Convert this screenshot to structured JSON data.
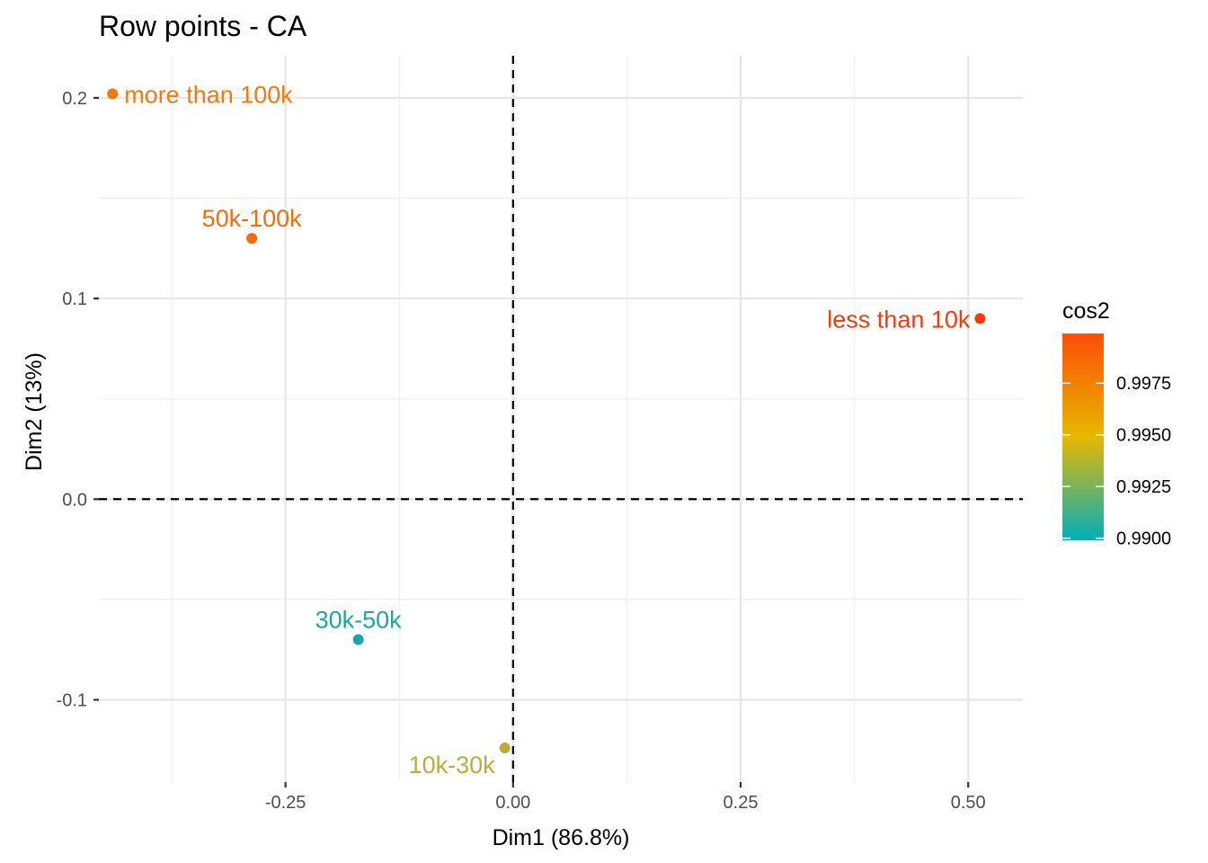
{
  "chart_data": {
    "type": "scatter",
    "title": "Row points - CA",
    "xlabel": "Dim1 (86.8%)",
    "ylabel": "Dim2 (13%)",
    "xlim": [
      -0.455,
      0.56
    ],
    "ylim": [
      -0.141,
      0.221
    ],
    "xticks": [
      -0.25,
      0.0,
      0.25,
      0.5
    ],
    "xtick_labels": [
      "-0.25",
      "0.00",
      "0.25",
      "0.50"
    ],
    "yticks": [
      -0.1,
      0.0,
      0.1,
      0.2
    ],
    "ytick_labels": [
      "-0.1",
      "0.0",
      "0.1",
      "0.2"
    ],
    "grid": true,
    "reference_lines": {
      "x": 0,
      "y": 0,
      "style": "dashed"
    },
    "points": [
      {
        "label": "less than 10k",
        "x": 0.513,
        "y": 0.09,
        "cos2": 0.9998,
        "color": "#f8390d",
        "label_anchor": "end"
      },
      {
        "label": "10k-30k",
        "x": -0.009,
        "y": -0.124,
        "cos2": 0.9928,
        "color": "#c0aa3c",
        "label_anchor": "end"
      },
      {
        "label": "30k-50k",
        "x": -0.17,
        "y": -0.07,
        "cos2": 0.99,
        "color": "#1aa5ad",
        "label_anchor": "middle"
      },
      {
        "label": "50k-100k",
        "x": -0.287,
        "y": 0.13,
        "cos2": 0.9985,
        "color": "#f26c0d",
        "label_anchor": "middle"
      },
      {
        "label": "more than 100k",
        "x": -0.44,
        "y": 0.202,
        "cos2": 0.998,
        "color": "#f07a0f",
        "label_anchor": "start"
      }
    ],
    "legend": {
      "title": "cos2",
      "position": "right",
      "range": [
        0.9899,
        0.9999
      ],
      "ticks": [
        0.99,
        0.9925,
        0.995,
        0.9975
      ],
      "tick_labels": [
        "0.9900",
        "0.9925",
        "0.9950",
        "0.9975"
      ],
      "gradient_colors": [
        "#00afbb",
        "#e7b800",
        "#fc4e07"
      ]
    }
  }
}
